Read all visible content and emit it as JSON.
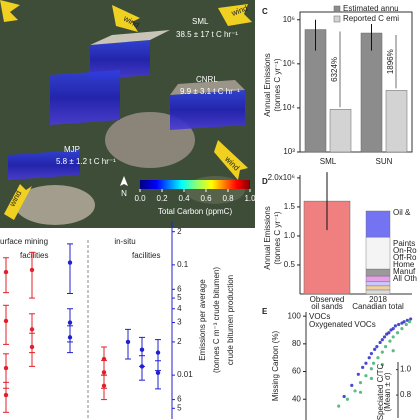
{
  "map": {
    "sites": [
      {
        "name": "SML",
        "emission": "38.5 ± 17 t C hr⁻¹"
      },
      {
        "name": "CNRL",
        "emission": "9.9 ± 3.1 t C hr⁻¹"
      },
      {
        "name": "MJP",
        "emission": "5.8 ± 1.2 t C hr⁻¹"
      }
    ],
    "winds": [
      "wind",
      "wind",
      "wind",
      "wind"
    ],
    "north": "N",
    "colorbar": {
      "label": "Total Carbon (ppmC)",
      "ticks": [
        {
          "value": 0,
          "label": "0.0"
        },
        {
          "value": 0.2,
          "label": "0.2"
        },
        {
          "value": 0.4,
          "label": "0.4"
        },
        {
          "value": 0.6,
          "label": "0.6"
        },
        {
          "value": 0.8,
          "label": "0.8"
        },
        {
          "value": 1,
          "label": "1.0"
        }
      ]
    }
  },
  "chart_data": [
    {
      "type": "bar",
      "panel": "C",
      "log_scale": true,
      "ylabel_lines": [
        "Annual Emissions",
        "(tonnes C yr⁻¹)"
      ],
      "categories": [
        "SML",
        "SUN"
      ],
      "series": [
        {
          "name": "Estimated annu",
          "color": "#8c8c8c",
          "values": [
            600000,
            500000
          ],
          "errors": [
            400000,
            300000
          ]
        },
        {
          "name": "Reported C emi",
          "color": "#d3d3d3",
          "values": [
            9300,
            25000
          ]
        }
      ],
      "annotations": [
        "6324%",
        "1896%"
      ],
      "ylim": [
        1000,
        1500000
      ],
      "yticks": [
        {
          "value": 1000,
          "label": "10³"
        },
        {
          "value": 10000,
          "label": "10⁴"
        },
        {
          "value": 100000,
          "label": "10⁵"
        },
        {
          "value": 1000000,
          "label": "10⁶"
        }
      ]
    },
    {
      "type": "stacked_bar",
      "panel": "D",
      "ylabel_lines": [
        "Annual Emissions",
        "(tonnes C yr⁻¹)"
      ],
      "categories": [
        "Observed oil sands",
        "2018 Canadian total"
      ],
      "observed": {
        "color": "#f08080",
        "value": 1600000,
        "error": 500000
      },
      "series": [
        {
          "name": "Oil &",
          "color": "#7474f2",
          "value": 450000
        },
        {
          "name": "Paints",
          "color": "#f4f4f4",
          "value": 550000
        },
        {
          "name": "On-Ro",
          "color": "#9a9a9a",
          "value": 120000
        },
        {
          "name": "Off-Ro",
          "color": "#e6a0e6",
          "value": 100000
        },
        {
          "name": "Home",
          "color": "#c8c8ff",
          "value": 70000
        },
        {
          "name": "Manuf",
          "color": "#f0d0a0",
          "value": 70000
        },
        {
          "name": "All Oth",
          "color": "#dddddd",
          "value": 70000
        }
      ],
      "ylim": [
        0,
        2050000
      ],
      "yticks": [
        {
          "value": 500000,
          "label": "0.5"
        },
        {
          "value": 1000000,
          "label": "1.0"
        },
        {
          "value": 1500000,
          "label": "1.5"
        },
        {
          "value": 2000000,
          "label": "2.0x10⁶"
        }
      ]
    },
    {
      "type": "scatter",
      "panel": "E",
      "ylabel": "Missing Carbon (%)",
      "series": [
        {
          "name": "VOCs",
          "color": "#2a2ac8",
          "x": [
            0.35,
            0.42,
            0.48,
            0.52,
            0.55,
            0.58,
            0.6,
            0.63,
            0.65,
            0.68,
            0.7,
            0.72,
            0.74,
            0.76,
            0.78,
            0.8,
            0.82,
            0.85,
            0.88,
            0.9,
            0.93,
            0.96
          ],
          "values": [
            42,
            50,
            58,
            63,
            66,
            70,
            73,
            76,
            78,
            81,
            83,
            85,
            87,
            88,
            90,
            91,
            93,
            94,
            95,
            96,
            97,
            98
          ]
        },
        {
          "name": "Oxygenated VOCs",
          "color": "#3cb371",
          "x": [
            0.3,
            0.38,
            0.45,
            0.5,
            0.55,
            0.6,
            0.62,
            0.66,
            0.7,
            0.73,
            0.77,
            0.8,
            0.84,
            0.88,
            0.92,
            0.95,
            0.5,
            0.6,
            0.7,
            0.8
          ],
          "values": [
            35,
            40,
            46,
            52,
            57,
            62,
            66,
            70,
            74,
            78,
            82,
            85,
            88,
            91,
            94,
            96,
            45,
            55,
            65,
            75
          ]
        }
      ],
      "xlim": [
        0,
        1
      ],
      "ylim": [
        25,
        103
      ],
      "yticks": [
        40,
        60,
        80,
        100
      ],
      "inset": {
        "ylabel_lines": [
          "Speciated C/TC",
          "(Mean ± σ)"
        ],
        "ylim": [
          0.62,
          1.06
        ],
        "yticks": [
          {
            "value": 1,
            "label": "1.0"
          },
          {
            "value": 0.8,
            "label": "0.8"
          }
        ]
      }
    },
    {
      "type": "dot_error",
      "log_scale": true,
      "group_labels": [
        [
          "urface mining",
          "facilities"
        ],
        [
          "in-situ",
          "facilities"
        ]
      ],
      "ylabel_lines": [
        "Emissions per average",
        "(tonnes C m⁻³ crude bitumen)",
        "crude bitumen production"
      ],
      "series": [
        {
          "color": "#e0202a",
          "values": [
            0.086,
            0.031,
            0.0116,
            0.0066
          ],
          "errors": [
            0.03,
            0.012,
            0.004,
            0.002
          ]
        },
        {
          "color": "#e0202a",
          "values": [
            0.09,
            0.026,
            0.018
          ],
          "errors": [
            0.04,
            0.01,
            0.006
          ]
        },
        {
          "color": "#2020d0",
          "values": [
            0.105,
            0.03,
            0.022
          ],
          "errors": [
            0.05,
            0.01,
            0.006
          ]
        },
        {
          "color": "#e0202a",
          "values": [
            0.014,
            0.0106,
            0.008
          ],
          "errors": [
            0.004,
            0.003,
            0.002
          ]
        },
        {
          "color": "#2020d0",
          "values": [
            0.02
          ],
          "errors": [
            0.006
          ]
        },
        {
          "color": "#2020d0",
          "values": [
            0.017,
            0.012
          ],
          "errors": [
            0.005,
            0.003
          ]
        },
        {
          "color": "#2020d0",
          "values": [
            0.016,
            0.0105
          ],
          "errors": [
            0.005,
            0.003
          ]
        }
      ],
      "ylim": [
        0.004,
        0.25
      ],
      "yticks": [
        {
          "value": 0.2,
          "label": "2"
        },
        0.1,
        {
          "value": 0.06,
          "label": "6"
        },
        {
          "value": 0.05,
          "label": "5"
        },
        {
          "value": 0.04,
          "label": "4"
        },
        {
          "value": 0.03,
          "label": "3"
        },
        {
          "value": 0.02,
          "label": "2"
        },
        0.01,
        {
          "value": 0.006,
          "label": "6"
        },
        {
          "value": 0.005,
          "label": "5"
        }
      ]
    }
  ]
}
